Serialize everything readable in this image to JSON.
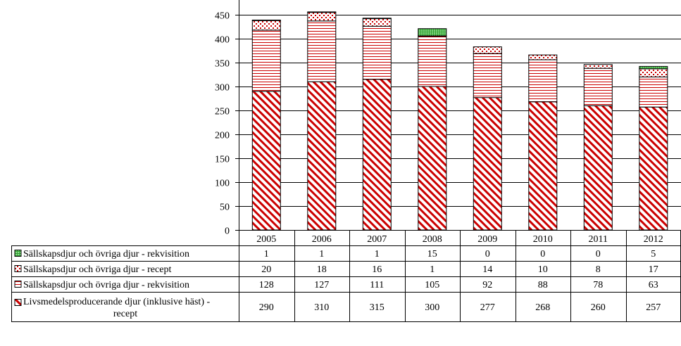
{
  "chart_data": {
    "type": "bar",
    "stacked": true,
    "categories": [
      "2005",
      "2006",
      "2007",
      "2008",
      "2009",
      "2010",
      "2011",
      "2012"
    ],
    "ylim": [
      0,
      450
    ],
    "yticks": [
      0,
      50,
      100,
      150,
      200,
      250,
      300,
      350,
      400,
      450
    ],
    "grid": true,
    "data_table": true,
    "series": [
      {
        "name": "Livsmedelsproducerande djur (inklusive häst) - recept",
        "values": [
          290,
          310,
          315,
          300,
          277,
          268,
          260,
          257
        ],
        "color": "#cc0000",
        "pattern": "diagonal-stripes"
      },
      {
        "name": "Sällskapsdjur och övriga djur - rekvisition",
        "values": [
          128,
          127,
          111,
          105,
          92,
          88,
          78,
          63
        ],
        "color": "#cc0000",
        "pattern": "horizontal-lines"
      },
      {
        "name": "Sällskapsdjur och övriga djur - recept",
        "values": [
          20,
          18,
          16,
          1,
          14,
          10,
          8,
          17
        ],
        "color": "#cc0000",
        "pattern": "dots"
      },
      {
        "name": "Sällskapsdjur och övriga djur - rekvisition",
        "values": [
          1,
          1,
          1,
          15,
          0,
          0,
          0,
          5
        ],
        "color": "#33aa33",
        "pattern": "grid"
      }
    ]
  }
}
